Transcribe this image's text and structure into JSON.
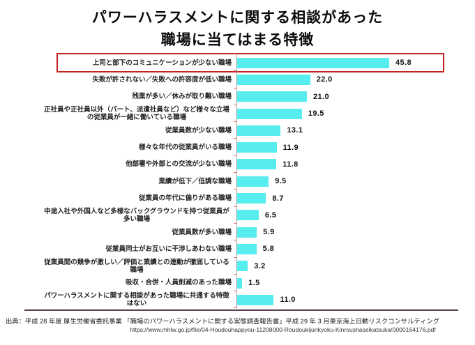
{
  "title": {
    "line1": "パワーハラスメントに関する相談があった",
    "line2": "職場に当てはまる特徴"
  },
  "chart_data": {
    "type": "bar",
    "orientation": "horizontal",
    "title": "パワーハラスメントに関する相談があった職場に当てはまる特徴",
    "xlabel": "",
    "ylabel": "",
    "xlim": [
      0,
      50
    ],
    "unit": "percent",
    "grid": false,
    "legend": "none",
    "bar_color": "#57ecee",
    "axis_color": "#9a9a9a",
    "tick_color": "#dd7a7a",
    "highlight_box_color": "#c42421",
    "highlighted_index": 0,
    "categories": [
      "上司と部下のコミュニケーションが少ない職場",
      "失敗が許されない／失敗への許容度が低い職場",
      "残業が多い／休みが取り難い職場",
      "正社員や正社員以外（パート、派遣社員など）など様々な立場の従業員が一緒に働いている職場",
      "従業員数が少ない職場",
      "様々な年代の従業員がいる職場",
      "他部署や外部との交流が少ない職場",
      "業績が低下／低調な職場",
      "従業員の年代に偏りがある職場",
      "中途入社や外国人など多様なバックグラウンドを持つ従業員が多い職場",
      "従業員数が多い職場",
      "従業員同士がお互いに干渉しあわない職場",
      "従業員間の競争が激しい／評価と業績との連動が徹底している職場",
      "吸収・合併・人員削減のあった職場",
      "パワーハラスメントに関する相談があった職場に共通する特徴はない"
    ],
    "values": [
      45.8,
      22.0,
      21.0,
      19.5,
      13.1,
      11.9,
      11.8,
      9.5,
      8.7,
      6.5,
      5.9,
      5.8,
      3.2,
      1.5,
      11.0
    ]
  },
  "footer": {
    "source_line": "出典：平成 28 年度 厚生労働省委託事業 「職場のパワーハラスメントに関する実態調査報告書」平成 29 年 3 月東京海上日動リスクコンサルティング",
    "url": "https://www.mhlw.go.jp/file/04-Houdouhappyou-11208000-Roudoukijunkyoku-Kinroushaseikatsuka/0000164176.pdf"
  }
}
